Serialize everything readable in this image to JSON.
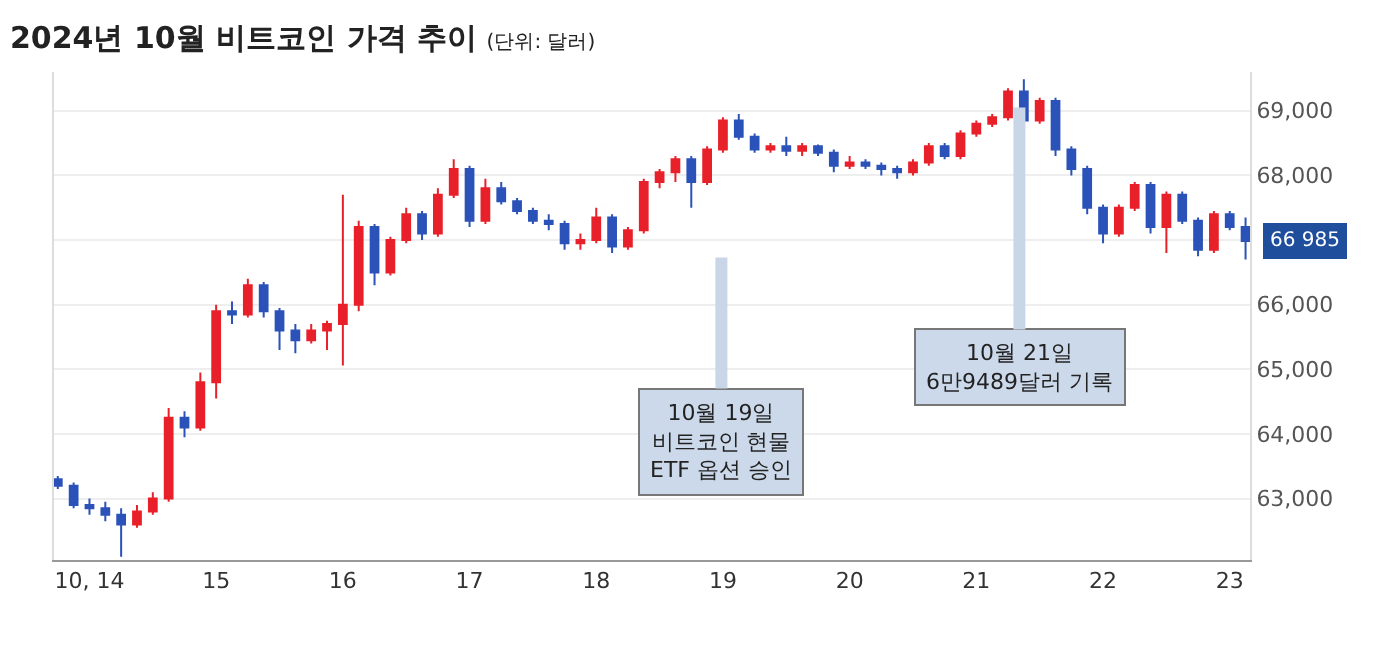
{
  "chart_data": {
    "type": "candlestick",
    "title": "2024년 10월 비트코인 가격 추이",
    "subtitle": "(단위: 달러)",
    "x": [
      13.75,
      13.875,
      14.0,
      14.125,
      14.25,
      14.375,
      14.5,
      14.625,
      14.75,
      14.875,
      15.0,
      15.125,
      15.25,
      15.375,
      15.5,
      15.625,
      15.75,
      15.875,
      16.0,
      16.125,
      16.25,
      16.375,
      16.5,
      16.625,
      16.75,
      16.875,
      17.0,
      17.125,
      17.25,
      17.375,
      17.5,
      17.625,
      17.75,
      17.875,
      18.0,
      18.125,
      18.25,
      18.375,
      18.5,
      18.625,
      18.75,
      18.875,
      19.0,
      19.125,
      19.25,
      19.375,
      19.5,
      19.625,
      19.75,
      19.875,
      20.0,
      20.125,
      20.25,
      20.375,
      20.5,
      20.625,
      20.75,
      20.875,
      21.0,
      21.125,
      21.25,
      21.375,
      21.5,
      21.625,
      21.75,
      21.875,
      22.0,
      22.125,
      22.25,
      22.375,
      22.5,
      22.625,
      22.75,
      22.875,
      23.0,
      23.125
    ],
    "ohlc": [
      [
        63300,
        63350,
        63150,
        63200
      ],
      [
        63200,
        63250,
        62850,
        62900
      ],
      [
        62900,
        63000,
        62750,
        62850
      ],
      [
        62850,
        62950,
        62650,
        62750
      ],
      [
        62750,
        62850,
        62100,
        62600
      ],
      [
        62600,
        62900,
        62550,
        62800
      ],
      [
        62800,
        63100,
        62750,
        63000
      ],
      [
        63000,
        64400,
        62950,
        64250
      ],
      [
        64250,
        64350,
        63950,
        64100
      ],
      [
        64100,
        64950,
        64050,
        64800
      ],
      [
        64800,
        66000,
        64550,
        65900
      ],
      [
        65900,
        66050,
        65700,
        65850
      ],
      [
        65850,
        66400,
        65800,
        66300
      ],
      [
        66300,
        66350,
        65800,
        65900
      ],
      [
        65900,
        65950,
        65300,
        65600
      ],
      [
        65600,
        65700,
        65250,
        65450
      ],
      [
        65450,
        65700,
        65400,
        65600
      ],
      [
        65600,
        65750,
        65300,
        65700
      ],
      [
        65700,
        67700,
        65060,
        66000
      ],
      [
        66000,
        67300,
        65900,
        67200
      ],
      [
        67200,
        67250,
        66300,
        66500
      ],
      [
        66500,
        67050,
        66450,
        67000
      ],
      [
        67000,
        67500,
        66950,
        67400
      ],
      [
        67400,
        67450,
        67000,
        67100
      ],
      [
        67100,
        67800,
        67050,
        67700
      ],
      [
        67700,
        68250,
        67650,
        68100
      ],
      [
        68100,
        68150,
        67200,
        67300
      ],
      [
        67300,
        67950,
        67250,
        67800
      ],
      [
        67800,
        67900,
        67550,
        67600
      ],
      [
        67600,
        67650,
        67400,
        67450
      ],
      [
        67450,
        67500,
        67250,
        67300
      ],
      [
        67300,
        67400,
        67150,
        67250
      ],
      [
        67250,
        67300,
        66850,
        66950
      ],
      [
        66950,
        67100,
        66850,
        67000
      ],
      [
        67000,
        67500,
        66950,
        67350
      ],
      [
        67350,
        67400,
        66800,
        66900
      ],
      [
        66900,
        67200,
        66850,
        67150
      ],
      [
        67150,
        67950,
        67100,
        67900
      ],
      [
        67900,
        68100,
        67800,
        68050
      ],
      [
        68050,
        68300,
        67900,
        68250
      ],
      [
        68250,
        68300,
        67500,
        67900
      ],
      [
        67900,
        68450,
        67850,
        68400
      ],
      [
        68400,
        68900,
        68350,
        68850
      ],
      [
        68850,
        68950,
        68550,
        68600
      ],
      [
        68600,
        68650,
        68350,
        68400
      ],
      [
        68400,
        68500,
        68350,
        68450
      ],
      [
        68450,
        68600,
        68300,
        68380
      ],
      [
        68380,
        68500,
        68300,
        68450
      ],
      [
        68450,
        68480,
        68300,
        68350
      ],
      [
        68350,
        68400,
        68050,
        68150
      ],
      [
        68150,
        68300,
        68100,
        68200
      ],
      [
        68200,
        68250,
        68100,
        68150
      ],
      [
        68150,
        68200,
        68000,
        68100
      ],
      [
        68100,
        68150,
        67950,
        68050
      ],
      [
        68050,
        68250,
        68000,
        68200
      ],
      [
        68200,
        68500,
        68150,
        68450
      ],
      [
        68450,
        68500,
        68250,
        68300
      ],
      [
        68300,
        68700,
        68250,
        68650
      ],
      [
        68650,
        68850,
        68600,
        68800
      ],
      [
        68800,
        68950,
        68750,
        68900
      ],
      [
        68900,
        69350,
        68850,
        69300
      ],
      [
        69300,
        69489,
        68800,
        68850
      ],
      [
        68850,
        69200,
        68800,
        69150
      ],
      [
        69150,
        69200,
        68300,
        68400
      ],
      [
        68400,
        68450,
        68000,
        68100
      ],
      [
        68100,
        68150,
        67400,
        67500
      ],
      [
        67500,
        67550,
        66950,
        67100
      ],
      [
        67100,
        67550,
        67050,
        67500
      ],
      [
        67500,
        67900,
        67450,
        67850
      ],
      [
        67850,
        67900,
        67100,
        67200
      ],
      [
        67200,
        67750,
        66800,
        67700
      ],
      [
        67700,
        67750,
        67250,
        67300
      ],
      [
        67300,
        67350,
        66750,
        66850
      ],
      [
        66850,
        67450,
        66800,
        67400
      ],
      [
        67400,
        67450,
        67150,
        67200
      ],
      [
        67200,
        67350,
        66700,
        66985
      ]
    ],
    "colors": [
      "#2a52b8",
      "#2a52b8",
      "#2a52b8",
      "#2a52b8",
      "#2a52b8",
      "#e8202a",
      "#e8202a",
      "#e8202a",
      "#2a52b8",
      "#e8202a",
      "#e8202a",
      "#2a52b8",
      "#e8202a",
      "#2a52b8",
      "#2a52b8",
      "#2a52b8",
      "#e8202a",
      "#e8202a",
      "#e8202a",
      "#e8202a",
      "#2a52b8",
      "#e8202a",
      "#e8202a",
      "#2a52b8",
      "#e8202a",
      "#e8202a",
      "#2a52b8",
      "#e8202a",
      "#2a52b8",
      "#2a52b8",
      "#2a52b8",
      "#2a52b8",
      "#2a52b8",
      "#e8202a",
      "#e8202a",
      "#2a52b8",
      "#e8202a",
      "#e8202a",
      "#e8202a",
      "#e8202a",
      "#2a52b8",
      "#e8202a",
      "#e8202a",
      "#2a52b8",
      "#2a52b8",
      "#e8202a",
      "#2a52b8",
      "#e8202a",
      "#2a52b8",
      "#2a52b8",
      "#e8202a",
      "#2a52b8",
      "#2a52b8",
      "#2a52b8",
      "#e8202a",
      "#e8202a",
      "#2a52b8",
      "#e8202a",
      "#e8202a",
      "#e8202a",
      "#e8202a",
      "#2a52b8",
      "#e8202a",
      "#2a52b8",
      "#2a52b8",
      "#2a52b8",
      "#2a52b8",
      "#e8202a",
      "#e8202a",
      "#2a52b8",
      "#e8202a",
      "#2a52b8",
      "#2a52b8",
      "#e8202a",
      "#2a52b8",
      "#2a52b8"
    ],
    "xlim": [
      13.72,
      23.16
    ],
    "xticks": [
      {
        "value": 14,
        "label": "10, 14"
      },
      15,
      16,
      17,
      18,
      19,
      20,
      21,
      22,
      23
    ],
    "ylim": [
      62050,
      69600
    ],
    "yticks": [
      {
        "value": 63000,
        "label": "63,000"
      },
      {
        "value": 64000,
        "label": "64,000"
      },
      {
        "value": 65000,
        "label": "65,000"
      },
      {
        "value": 66000,
        "label": "66,000"
      },
      {
        "value": 67000,
        "label": null
      },
      {
        "value": 68000,
        "label": "68,000"
      },
      {
        "value": 69000,
        "label": "69,000"
      }
    ],
    "grid": "y",
    "annotations": [
      "10월 19일\n비트코인 현물\nETF 옵션 승인",
      {
        "text": "10월 21일\n6만9489달러 기록",
        "x": 21.34,
        "y": 69050
      },
      {
        "text": "66 985",
        "x": 23.16,
        "y": 66985
      }
    ]
  }
}
